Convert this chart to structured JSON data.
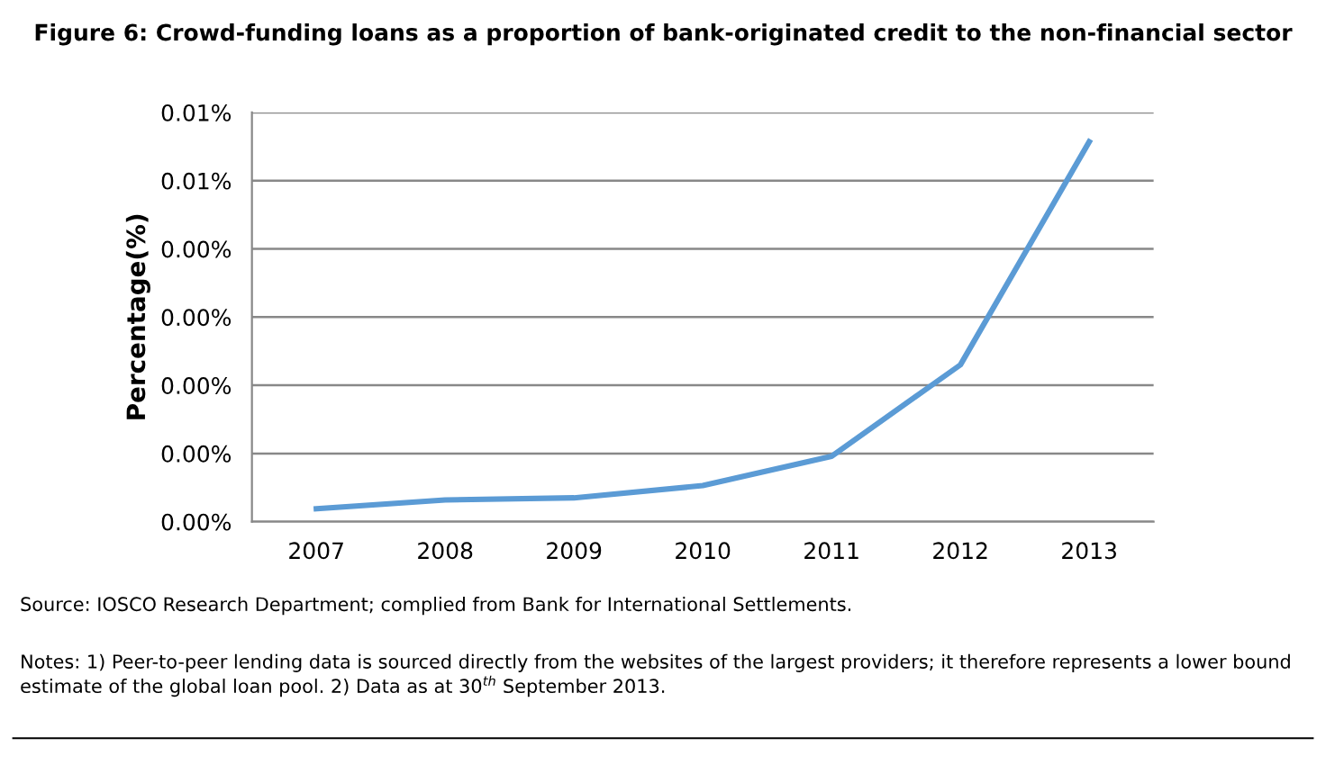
{
  "chart_data": {
    "type": "line",
    "title": "Figure 6: Crowd-funding loans as a proportion of bank-originated credit to the non-financial sector",
    "ylabel": "Percentage(%)",
    "categories": [
      "2007",
      "2008",
      "2009",
      "2010",
      "2011",
      "2012",
      "2013"
    ],
    "series": [
      {
        "color": "#5b9bd5",
        "values": [
          0.00019,
          0.00032,
          0.00035,
          0.00053,
          0.00096,
          0.0023,
          0.00557
        ]
      }
    ],
    "ylim": [
      0,
      0.006
    ],
    "yticks": [
      {
        "value": 0,
        "label": "0.00%"
      },
      {
        "value": 0.001,
        "label": "0.00%"
      },
      {
        "value": 0.002,
        "label": "0.00%"
      },
      {
        "value": 0.003,
        "label": "0.00%"
      },
      {
        "value": 0.004,
        "label": "0.00%"
      },
      {
        "value": 0.005,
        "label": "0.01%"
      },
      {
        "value": 0.006,
        "label": "0.01%"
      }
    ],
    "grid": "y",
    "legend": false,
    "annotations": [
      "Source: IOSCO Research Department; complied from Bank for International Settlements.",
      "Notes: 1) Peer-to-peer lending data is sourced directly from the websites of the largest providers; it therefore represents a lower bound estimate of the global loan pool. 2) Data as at 30$^{th}$ September 2013."
    ]
  }
}
